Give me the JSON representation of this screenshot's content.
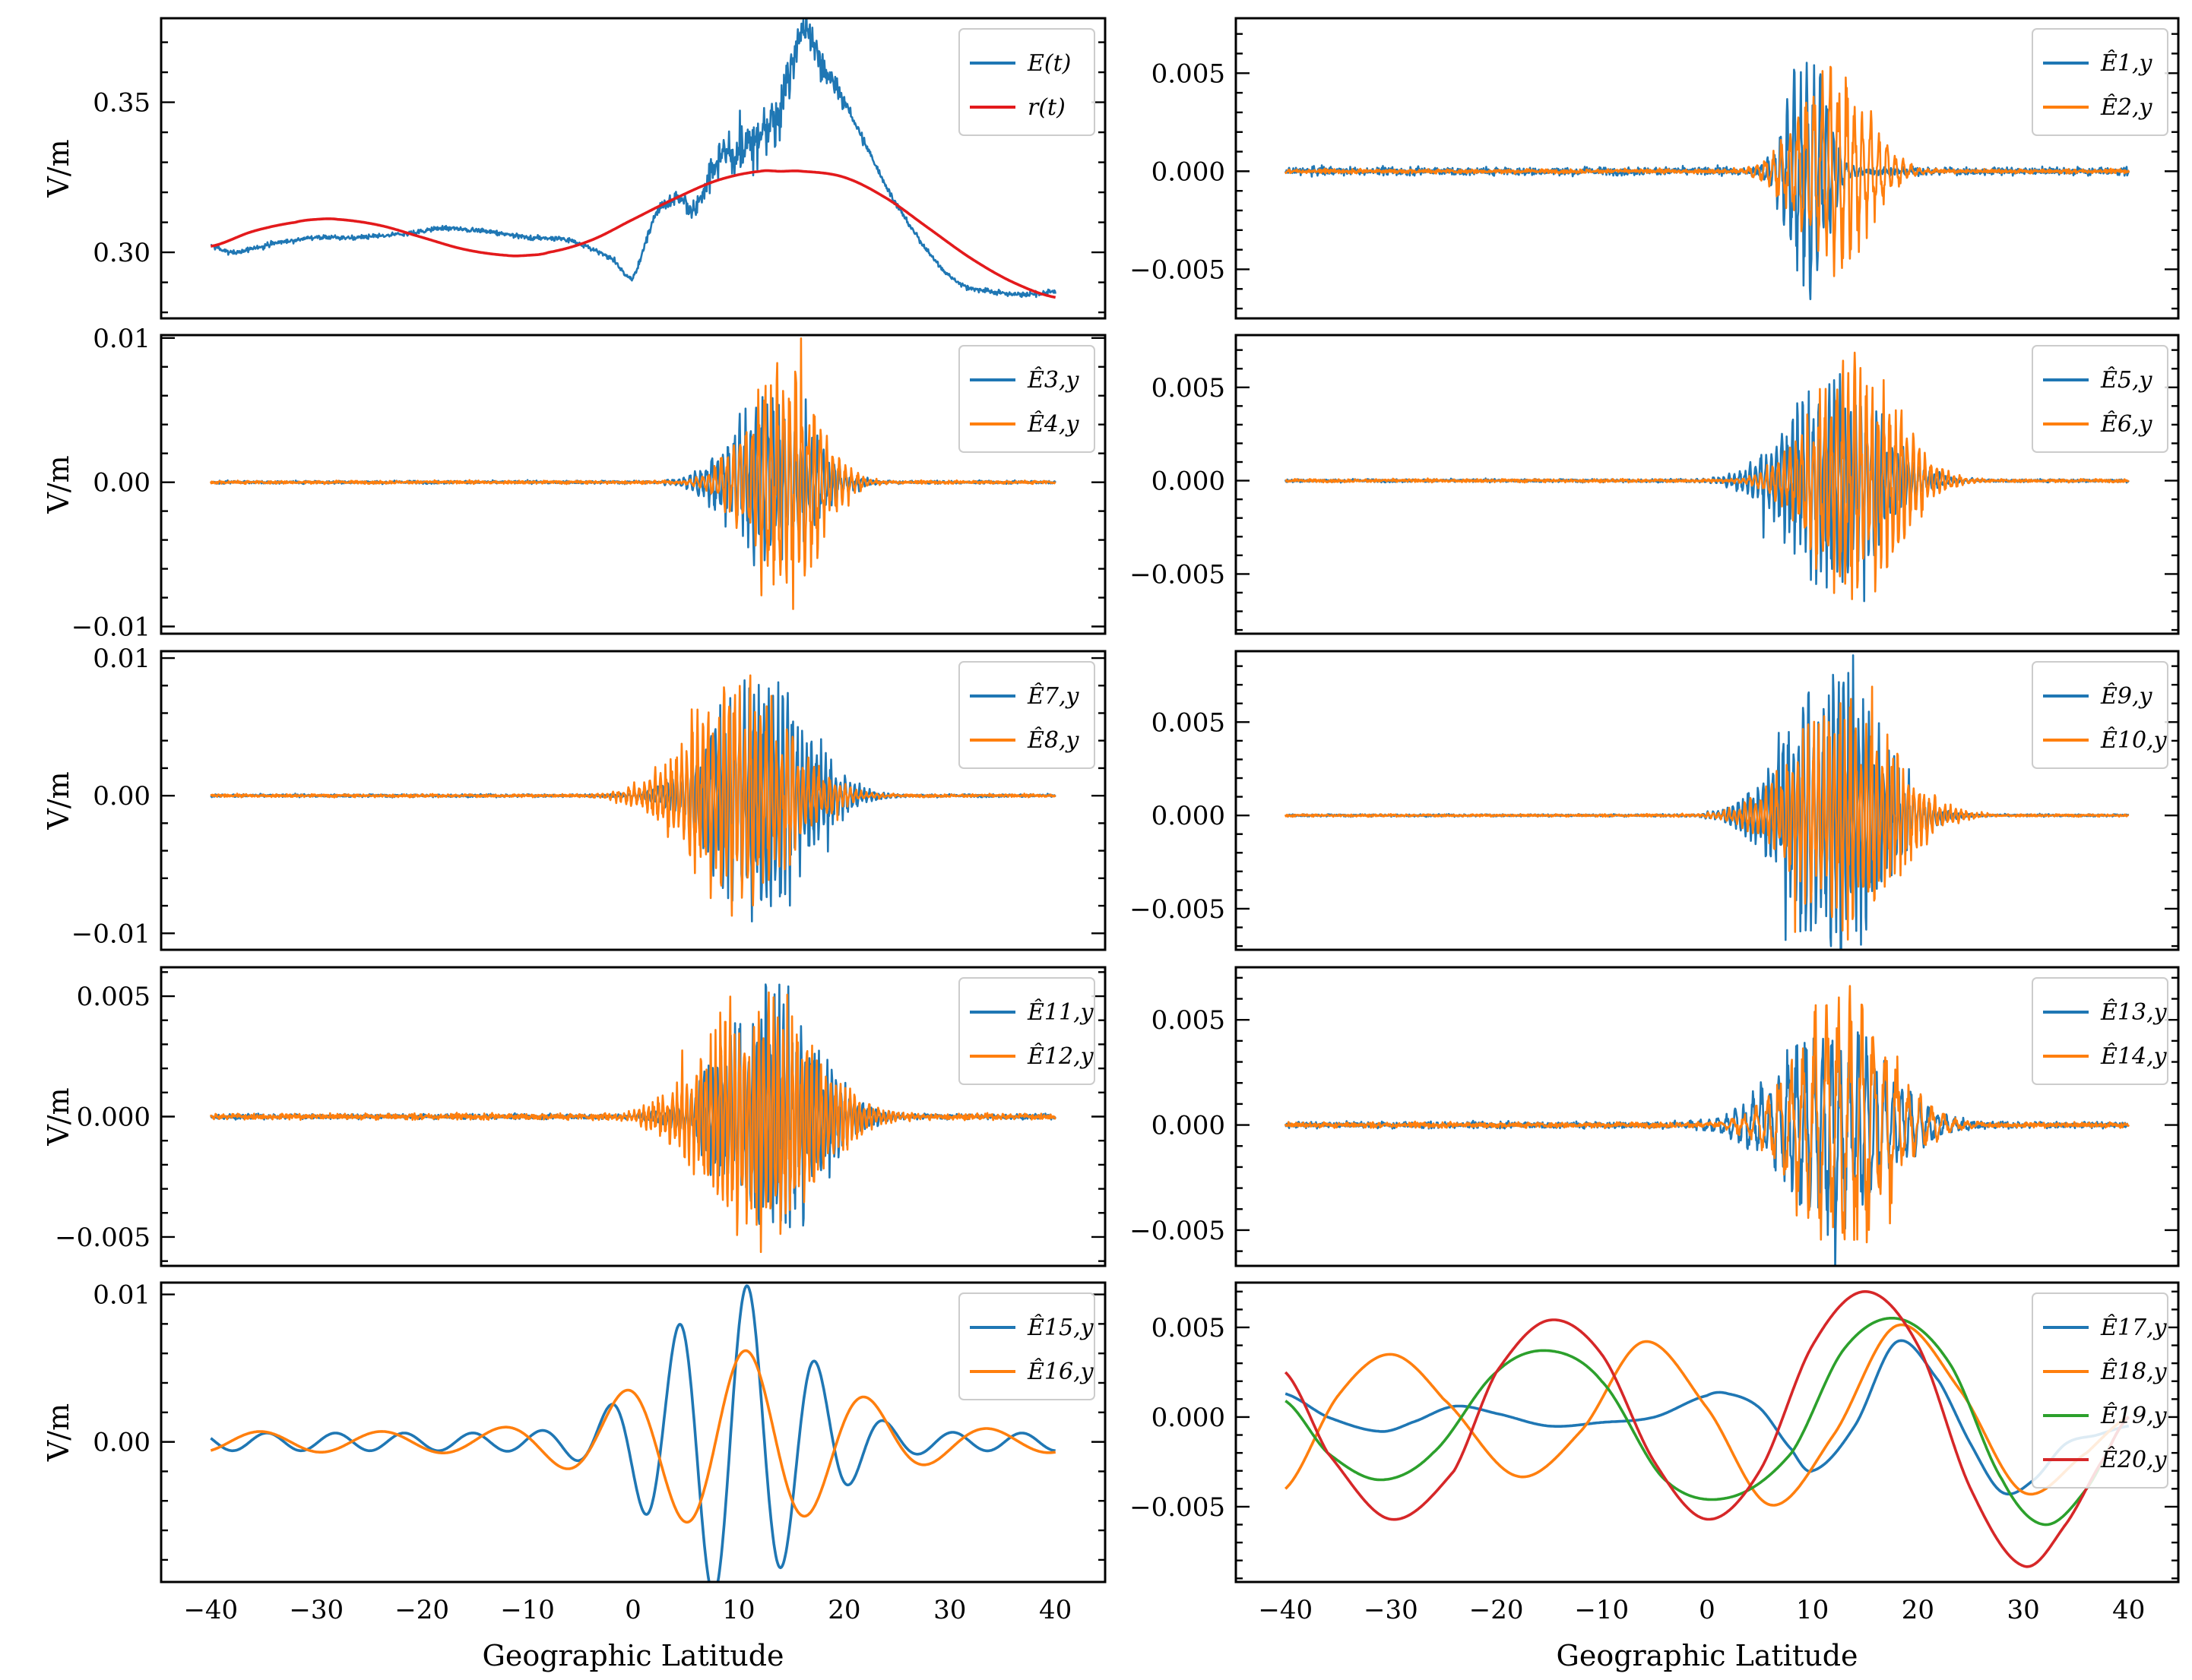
{
  "figure": {
    "ylabel": "V/m",
    "xlabel": "Geographic Latitude"
  },
  "chart_data": [
    {
      "type": "line",
      "panel": "row1-left",
      "x_range": [
        -40,
        40
      ],
      "xticks": [
        -40,
        -30,
        -20,
        -10,
        0,
        10,
        20,
        30,
        40
      ],
      "ylim": [
        0.278,
        0.378
      ],
      "yticks": [
        0.3,
        0.35
      ],
      "ytick_labels": [
        "0.30",
        "0.35"
      ],
      "ylabel": "V/m",
      "legend_position": "top-right",
      "series": [
        {
          "name": "E(t)",
          "color": "#1f77b4",
          "kind": "signal",
          "x": [
            -40,
            -38,
            -34,
            -30,
            -26,
            -22,
            -18,
            -14,
            -10,
            -6,
            -2,
            0,
            2,
            4,
            6,
            8,
            10,
            12,
            14,
            16,
            18,
            20,
            22,
            24,
            26,
            28,
            30,
            32,
            34,
            36,
            38,
            40
          ],
          "values": [
            0.302,
            0.3,
            0.303,
            0.305,
            0.305,
            0.306,
            0.308,
            0.307,
            0.305,
            0.304,
            0.298,
            0.292,
            0.312,
            0.318,
            0.315,
            0.33,
            0.333,
            0.338,
            0.35,
            0.373,
            0.362,
            0.35,
            0.336,
            0.322,
            0.31,
            0.3,
            0.292,
            0.288,
            0.287,
            0.286,
            0.286,
            0.287
          ],
          "noise": 0.0008,
          "burst_noise": 0.009,
          "burst_center": 12,
          "burst_width": 7
        },
        {
          "name": "r(t)",
          "color": "#e31a1c",
          "kind": "smooth",
          "x": [
            -40,
            -36,
            -32,
            -30,
            -28,
            -24,
            -20,
            -16,
            -12,
            -10,
            -8,
            -4,
            0,
            4,
            8,
            12,
            14,
            16,
            20,
            24,
            28,
            32,
            36,
            40
          ],
          "values": [
            0.302,
            0.307,
            0.31,
            0.311,
            0.311,
            0.309,
            0.305,
            0.301,
            0.299,
            0.299,
            0.3,
            0.304,
            0.311,
            0.318,
            0.324,
            0.327,
            0.327,
            0.327,
            0.325,
            0.318,
            0.308,
            0.298,
            0.29,
            0.285
          ]
        }
      ]
    },
    {
      "type": "line",
      "panel": "row1-right",
      "x_range": [
        -40,
        40
      ],
      "xticks": [
        -40,
        -30,
        -20,
        -10,
        0,
        10,
        20,
        30,
        40
      ],
      "ylim": [
        -0.0075,
        0.0078
      ],
      "yticks": [
        -0.005,
        0.0,
        0.005
      ],
      "ytick_labels": [
        "−0.005",
        "0.000",
        "0.005"
      ],
      "legend_position": "top-right",
      "series": [
        {
          "name": "Ê1,y",
          "color": "#1f77b4",
          "kind": "burst",
          "amp": 0.0072,
          "center": 9.5,
          "width": 2.5,
          "freq": 1.6,
          "floor": 0.0002
        },
        {
          "name": "Ê2,y",
          "color": "#ff7f0e",
          "kind": "burst",
          "amp": 0.0058,
          "center": 12,
          "width": 4.5,
          "freq": 1.3,
          "floor": 0.0001
        }
      ]
    },
    {
      "type": "line",
      "panel": "row2-left",
      "x_range": [
        -40,
        40
      ],
      "xticks": [
        -40,
        -30,
        -20,
        -10,
        0,
        10,
        20,
        30,
        40
      ],
      "ylim": [
        -0.0105,
        0.0102
      ],
      "yticks": [
        -0.01,
        0.0,
        0.01
      ],
      "ytick_labels": [
        "−0.01",
        "0.00",
        "0.01"
      ],
      "ylabel": "V/m",
      "legend_position": "top-right",
      "series": [
        {
          "name": "Ê3,y",
          "color": "#1f77b4",
          "kind": "burst",
          "amp": 0.007,
          "center": 13,
          "width": 5,
          "freq": 1.9,
          "floor": 0.0001
        },
        {
          "name": "Ê4,y",
          "color": "#ff7f0e",
          "kind": "burst",
          "amp": 0.0095,
          "center": 14,
          "width": 4.5,
          "freq": 1.7,
          "floor": 0.0001
        }
      ]
    },
    {
      "type": "line",
      "panel": "row2-right",
      "x_range": [
        -40,
        40
      ],
      "xticks": [
        -40,
        -30,
        -20,
        -10,
        0,
        10,
        20,
        30,
        40
      ],
      "ylim": [
        -0.0082,
        0.0078
      ],
      "yticks": [
        -0.005,
        0.0,
        0.005
      ],
      "ytick_labels": [
        "−0.005",
        "0.000",
        "0.005"
      ],
      "legend_position": "top-right",
      "series": [
        {
          "name": "Ê5,y",
          "color": "#1f77b4",
          "kind": "burst",
          "amp": 0.0062,
          "center": 12,
          "width": 6,
          "freq": 2.0,
          "floor": 8e-05
        },
        {
          "name": "Ê6,y",
          "color": "#ff7f0e",
          "kind": "burst",
          "amp": 0.0075,
          "center": 14,
          "width": 5.5,
          "freq": 1.8,
          "floor": 8e-05
        }
      ]
    },
    {
      "type": "line",
      "panel": "row3-left",
      "x_range": [
        -40,
        40
      ],
      "xticks": [
        -40,
        -30,
        -20,
        -10,
        0,
        10,
        20,
        30,
        40
      ],
      "ylim": [
        -0.0112,
        0.0105
      ],
      "yticks": [
        -0.01,
        0.0,
        0.01
      ],
      "ytick_labels": [
        "−0.01",
        "0.00",
        "0.01"
      ],
      "ylabel": "V/m",
      "legend_position": "top-right",
      "series": [
        {
          "name": "Ê7,y",
          "color": "#1f77b4",
          "kind": "burst",
          "amp": 0.0102,
          "center": 12,
          "width": 6,
          "freq": 2.2,
          "floor": 0.0001
        },
        {
          "name": "Ê8,y",
          "color": "#ff7f0e",
          "kind": "burst",
          "amp": 0.0093,
          "center": 10,
          "width": 6.5,
          "freq": 2.0,
          "floor": 0.0001
        }
      ]
    },
    {
      "type": "line",
      "panel": "row3-right",
      "x_range": [
        -40,
        40
      ],
      "xticks": [
        -40,
        -30,
        -20,
        -10,
        0,
        10,
        20,
        30,
        40
      ],
      "ylim": [
        -0.0072,
        0.0088
      ],
      "yticks": [
        -0.005,
        0.0,
        0.005
      ],
      "ytick_labels": [
        "−0.005",
        "0.000",
        "0.005"
      ],
      "legend_position": "top-right",
      "series": [
        {
          "name": "Ê9,y",
          "color": "#1f77b4",
          "kind": "burst",
          "amp": 0.0085,
          "center": 12,
          "width": 6,
          "freq": 2.1,
          "floor": 6e-05
        },
        {
          "name": "Ê10,y",
          "color": "#ff7f0e",
          "kind": "burst",
          "amp": 0.0068,
          "center": 13,
          "width": 6.5,
          "freq": 2.0,
          "floor": 6e-05
        }
      ]
    },
    {
      "type": "line",
      "panel": "row4-left",
      "x_range": [
        -40,
        40
      ],
      "xticks": [
        -40,
        -30,
        -20,
        -10,
        0,
        10,
        20,
        30,
        40
      ],
      "ylim": [
        -0.0062,
        0.0062
      ],
      "yticks": [
        -0.005,
        0.0,
        0.005
      ],
      "ytick_labels": [
        "−0.005",
        "0.000",
        "0.005"
      ],
      "ylabel": "V/m",
      "legend_position": "top-right",
      "series": [
        {
          "name": "Ê11,y",
          "color": "#1f77b4",
          "kind": "burst",
          "amp": 0.006,
          "center": 13,
          "width": 6,
          "freq": 2.4,
          "floor": 0.0001
        },
        {
          "name": "Ê12,y",
          "color": "#ff7f0e",
          "kind": "burst",
          "amp": 0.0058,
          "center": 12,
          "width": 7,
          "freq": 2.2,
          "floor": 0.00012
        }
      ]
    },
    {
      "type": "line",
      "panel": "row4-right",
      "x_range": [
        -40,
        40
      ],
      "xticks": [
        -40,
        -30,
        -20,
        -10,
        0,
        10,
        20,
        30,
        40
      ],
      "ylim": [
        -0.0067,
        0.0075
      ],
      "yticks": [
        -0.005,
        0.0,
        0.005
      ],
      "ytick_labels": [
        "−0.005",
        "0.000",
        "0.005"
      ],
      "legend_position": "top-right",
      "series": [
        {
          "name": "Ê13,y",
          "color": "#1f77b4",
          "kind": "burst",
          "amp": 0.0055,
          "center": 12,
          "width": 7,
          "freq": 1.2,
          "floor": 0.00015
        },
        {
          "name": "Ê14,y",
          "color": "#ff7f0e",
          "kind": "burst",
          "amp": 0.0068,
          "center": 13,
          "width": 6,
          "freq": 0.9,
          "floor": 0.00012
        }
      ]
    },
    {
      "type": "line",
      "panel": "row5-left",
      "x_range": [
        -40,
        40
      ],
      "xticks": [
        -40,
        -30,
        -20,
        -10,
        0,
        10,
        20,
        30,
        40
      ],
      "xtick_labels": [
        "−40",
        "−30",
        "−20",
        "−10",
        "0",
        "10",
        "20",
        "30",
        "40"
      ],
      "ylim": [
        -0.0095,
        0.0108
      ],
      "yticks": [
        0.0,
        0.01
      ],
      "ytick_labels": [
        "0.00",
        "0.01"
      ],
      "ylabel": "V/m",
      "xlabel": "Geographic Latitude",
      "legend_position": "top-right",
      "series": [
        {
          "name": "Ê15,y",
          "color": "#1f77b4",
          "kind": "wave",
          "amp": 0.0102,
          "center": 9.5,
          "width": 9,
          "period": 6.5,
          "phase": 0.3,
          "floor": 0.0006
        },
        {
          "name": "Ê16,y",
          "color": "#ff7f0e",
          "kind": "wave",
          "amp": 0.0055,
          "center": 10,
          "width": 13,
          "period": 11.5,
          "phase": 1.2,
          "floor": 0.0007
        }
      ]
    },
    {
      "type": "line",
      "panel": "row5-right",
      "x_range": [
        -40,
        40
      ],
      "xticks": [
        -40,
        -30,
        -20,
        -10,
        0,
        10,
        20,
        30,
        40
      ],
      "xtick_labels": [
        "−40",
        "−30",
        "−20",
        "−10",
        "0",
        "10",
        "20",
        "30",
        "40"
      ],
      "ylim": [
        -0.0092,
        0.0075
      ],
      "yticks": [
        -0.005,
        0.0,
        0.005
      ],
      "ytick_labels": [
        "−0.005",
        "0.000",
        "0.005"
      ],
      "xlabel": "Geographic Latitude",
      "legend_position": "top-right",
      "series": [
        {
          "name": "Ê17,y",
          "color": "#1f77b4",
          "kind": "smooth",
          "x": [
            -40,
            -36,
            -31,
            -28,
            -24,
            -20,
            -15,
            -10,
            -5,
            0,
            2,
            5,
            8,
            10,
            14,
            18,
            22,
            25,
            28,
            31,
            34,
            37,
            40
          ],
          "values": [
            0.0013,
            0.0,
            -0.0008,
            -0.0003,
            0.0006,
            0.0002,
            -0.0005,
            -0.0003,
            0.0,
            0.0012,
            0.0013,
            0.0005,
            -0.0018,
            -0.003,
            -0.0005,
            0.0042,
            0.002,
            -0.0015,
            -0.0042,
            -0.0035,
            -0.0015,
            -0.001,
            -0.0005
          ]
        },
        {
          "name": "Ê18,y",
          "color": "#ff7f0e",
          "kind": "smooth",
          "x": [
            -40,
            -35,
            -30,
            -25,
            -18,
            -12,
            -6,
            0,
            6,
            12,
            18,
            24,
            30,
            36,
            40
          ],
          "values": [
            -0.004,
            0.0012,
            0.0035,
            0.001,
            -0.0033,
            -0.0008,
            0.0042,
            0.0005,
            -0.0049,
            -0.001,
            0.0051,
            0.0015,
            -0.0042,
            -0.002,
            0.0
          ]
        },
        {
          "name": "Ê19,y",
          "color": "#2ca02c",
          "kind": "smooth",
          "x": [
            -40,
            -36,
            -31,
            -26,
            -20,
            -15,
            -10,
            -4,
            2,
            8,
            13,
            18,
            23,
            28,
            32,
            36,
            40
          ],
          "values": [
            0.0009,
            -0.002,
            -0.0035,
            -0.002,
            0.0025,
            0.0037,
            0.002,
            -0.0035,
            -0.0045,
            -0.002,
            0.0038,
            0.0055,
            0.003,
            -0.0035,
            -0.006,
            -0.004,
            0.0
          ]
        },
        {
          "name": "Ê20,y",
          "color": "#d62728",
          "kind": "smooth",
          "x": [
            -40,
            -36,
            -30,
            -24,
            -20,
            -15,
            -10,
            -5,
            0,
            5,
            10,
            15,
            20,
            25,
            30,
            34,
            38,
            40
          ],
          "values": [
            0.0025,
            -0.002,
            -0.0057,
            -0.003,
            0.0025,
            0.0054,
            0.0035,
            -0.0025,
            -0.0057,
            -0.003,
            0.004,
            0.007,
            0.004,
            -0.004,
            -0.0083,
            -0.006,
            -0.002,
            0.0
          ]
        }
      ]
    }
  ]
}
